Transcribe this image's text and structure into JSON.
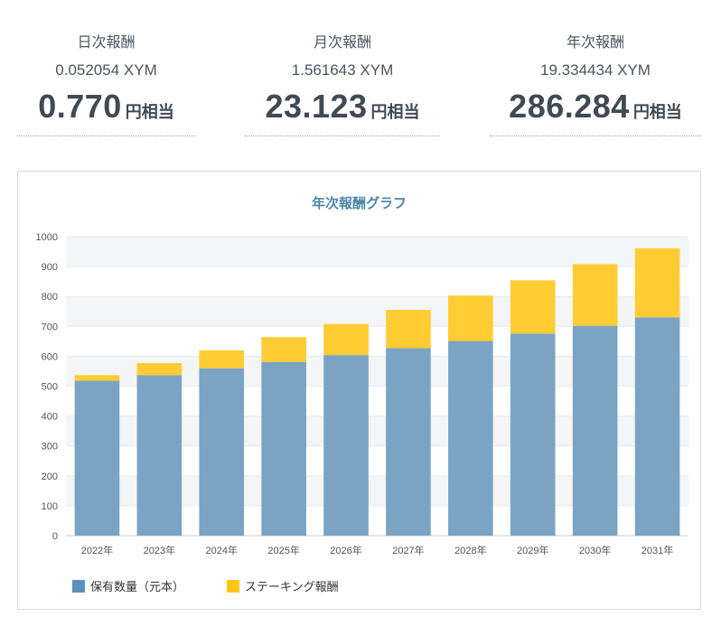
{
  "stats": [
    {
      "label": "日次報酬",
      "xym": "0.052054 XYM",
      "jpy": "0.770",
      "unit": "円相当"
    },
    {
      "label": "月次報酬",
      "xym": "1.561643 XYM",
      "jpy": "23.123",
      "unit": "円相当"
    },
    {
      "label": "年次報酬",
      "xym": "19.334434 XYM",
      "jpy": "286.284",
      "unit": "円相当"
    }
  ],
  "chart_data": {
    "type": "bar",
    "stacked": true,
    "title": "年次報酬グラフ",
    "categories": [
      "2022年",
      "2023年",
      "2024年",
      "2025年",
      "2026年",
      "2027年",
      "2028年",
      "2029年",
      "2030年",
      "2031年"
    ],
    "series": [
      {
        "name": "保有数量（元本）",
        "color": "#7ba4c4",
        "values": [
          518,
          537,
          560,
          581,
          604,
          627,
          651,
          676,
          702,
          730
        ]
      },
      {
        "name": "ステーキング報酬",
        "color": "#ffcc33",
        "values": [
          19,
          40,
          60,
          83,
          104,
          128,
          152,
          178,
          206,
          231
        ]
      }
    ],
    "ylim": [
      0,
      1000
    ],
    "yticks": [
      0,
      100,
      200,
      300,
      400,
      500,
      600,
      700,
      800,
      900,
      1000
    ],
    "legend_position": "bottom-left",
    "legend_colors": [
      "#5b92bb",
      "#ffc61a"
    ]
  }
}
